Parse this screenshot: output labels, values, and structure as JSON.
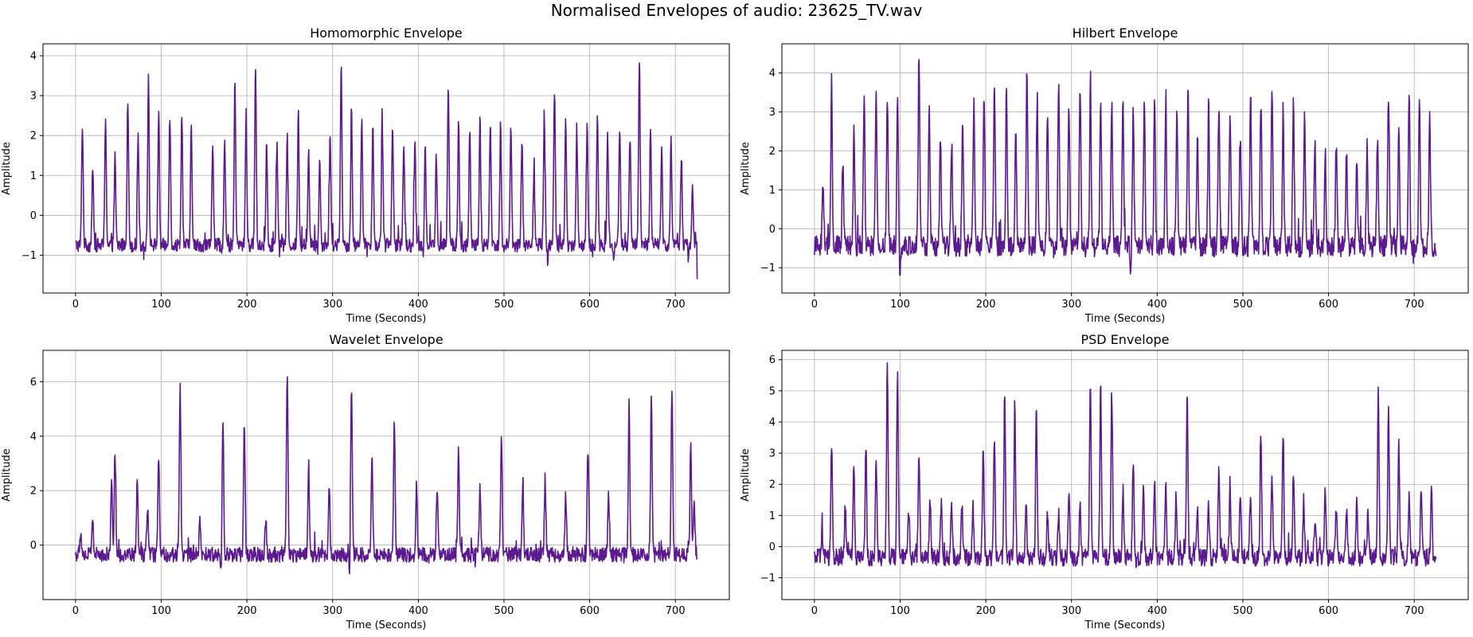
{
  "figure": {
    "suptitle": "Normalised Envelopes of audio: 23625_TV.wav",
    "line_color": "#5b1a8e"
  },
  "chart_data": [
    {
      "type": "line",
      "title": "Homomorphic Envelope",
      "xlabel": "Time (Seconds)",
      "ylabel": "Amplitude",
      "xlim": [
        -38,
        763
      ],
      "ylim": [
        -1.95,
        4.3
      ],
      "xticks": [
        0,
        100,
        200,
        300,
        400,
        500,
        600,
        700
      ],
      "yticks": [
        -1,
        0,
        1,
        2,
        3,
        4
      ],
      "grid": true,
      "baseline": -0.75,
      "x_end": 725,
      "end_value": -1.6,
      "beats": [
        [
          8,
          2.3
        ],
        [
          20,
          1.2
        ],
        [
          35,
          2.45
        ],
        [
          46,
          1.45
        ],
        [
          61,
          2.85
        ],
        [
          73,
          2.05
        ],
        [
          85,
          3.4
        ],
        [
          97,
          2.6
        ],
        [
          110,
          2.55
        ],
        [
          124,
          2.55
        ],
        [
          135,
          2.15
        ],
        [
          160,
          1.85
        ],
        [
          174,
          1.85
        ],
        [
          186,
          3.35
        ],
        [
          199,
          2.55
        ],
        [
          210,
          3.7
        ],
        [
          223,
          1.85
        ],
        [
          235,
          1.75
        ],
        [
          247,
          1.95
        ],
        [
          260,
          2.55
        ],
        [
          272,
          1.65
        ],
        [
          285,
          1.45
        ],
        [
          297,
          2.0
        ],
        [
          310,
          3.7
        ],
        [
          322,
          2.7
        ],
        [
          334,
          2.45
        ],
        [
          347,
          2.15
        ],
        [
          358,
          2.15
        ],
        [
          370,
          2.35
        ],
        [
          383,
          1.85
        ],
        [
          396,
          1.9
        ],
        [
          408,
          1.85
        ],
        [
          421,
          1.45
        ],
        [
          435,
          3.25
        ],
        [
          447,
          2.3
        ],
        [
          460,
          2.15
        ],
        [
          472,
          2.35
        ],
        [
          484,
          2.35
        ],
        [
          496,
          2.25
        ],
        [
          508,
          2.15
        ],
        [
          521,
          1.95
        ],
        [
          535,
          1.05
        ],
        [
          547,
          2.5
        ],
        [
          559,
          3.2
        ],
        [
          572,
          2.3
        ],
        [
          585,
          2.3
        ],
        [
          597,
          2.2
        ],
        [
          609,
          2.5
        ],
        [
          621,
          2.05
        ],
        [
          635,
          2.15
        ],
        [
          647,
          2.05
        ],
        [
          658,
          3.95
        ],
        [
          671,
          2.1
        ],
        [
          684,
          1.6
        ],
        [
          695,
          1.95
        ],
        [
          707,
          1.5
        ],
        [
          720,
          0.75
        ]
      ],
      "dips": [
        [
          406,
          -1.2
        ],
        [
          551,
          -1.1
        ],
        [
          628,
          -1.15
        ],
        [
          715,
          -1.05
        ]
      ]
    },
    {
      "type": "line",
      "title": "Hilbert Envelope",
      "xlabel": "Time (Seconds)",
      "ylabel": "Amplitude",
      "xlim": [
        -38,
        763
      ],
      "ylim": [
        -1.65,
        4.75
      ],
      "xticks": [
        0,
        100,
        200,
        300,
        400,
        500,
        600,
        700
      ],
      "yticks": [
        -1,
        0,
        1,
        2,
        3,
        4
      ],
      "grid": true,
      "baseline": -0.45,
      "x_end": 725,
      "end_value": -0.7,
      "beats": [
        [
          10,
          1.3
        ],
        [
          20,
          3.5
        ],
        [
          33,
          1.8
        ],
        [
          46,
          2.8
        ],
        [
          58,
          3.3
        ],
        [
          72,
          3.45
        ],
        [
          85,
          3.3
        ],
        [
          97,
          3.6
        ],
        [
          122,
          4.45
        ],
        [
          134,
          2.95
        ],
        [
          147,
          2.45
        ],
        [
          160,
          2.25
        ],
        [
          173,
          2.85
        ],
        [
          186,
          3.25
        ],
        [
          198,
          3.5
        ],
        [
          210,
          3.85
        ],
        [
          224,
          3.95
        ],
        [
          235,
          2.65
        ],
        [
          248,
          4.05
        ],
        [
          260,
          3.3
        ],
        [
          272,
          3.05
        ],
        [
          285,
          3.65
        ],
        [
          297,
          3.2
        ],
        [
          310,
          3.8
        ],
        [
          322,
          4.0
        ],
        [
          334,
          3.15
        ],
        [
          347,
          3.2
        ],
        [
          360,
          3.3
        ],
        [
          372,
          3.2
        ],
        [
          385,
          3.5
        ],
        [
          397,
          3.25
        ],
        [
          410,
          3.3
        ],
        [
          423,
          3.05
        ],
        [
          436,
          3.6
        ],
        [
          447,
          3.0
        ],
        [
          460,
          3.25
        ],
        [
          472,
          3.1
        ],
        [
          485,
          3.05
        ],
        [
          497,
          2.95
        ],
        [
          509,
          3.55
        ],
        [
          521,
          3.3
        ],
        [
          534,
          3.55
        ],
        [
          547,
          3.05
        ],
        [
          559,
          3.4
        ],
        [
          572,
          2.75
        ],
        [
          584,
          2.3
        ],
        [
          596,
          2.1
        ],
        [
          609,
          2.2
        ],
        [
          621,
          2.05
        ],
        [
          633,
          1.95
        ],
        [
          645,
          2.1
        ],
        [
          657,
          2.35
        ],
        [
          670,
          4.05
        ],
        [
          682,
          2.85
        ],
        [
          694,
          3.55
        ],
        [
          706,
          3.25
        ],
        [
          718,
          3.15
        ]
      ],
      "dips": [
        [
          45,
          -1.05
        ],
        [
          100,
          -1.3
        ],
        [
          223,
          -1.3
        ],
        [
          321,
          -1.3
        ],
        [
          369,
          -1.3
        ],
        [
          447,
          -1.25
        ],
        [
          497,
          -1.2
        ],
        [
          595,
          -1.05
        ],
        [
          670,
          -1.2
        ]
      ]
    },
    {
      "type": "line",
      "title": "Wavelet Envelope",
      "xlabel": "Time (Seconds)",
      "ylabel": "Amplitude",
      "xlim": [
        -38,
        763
      ],
      "ylim": [
        -2.0,
        7.15
      ],
      "xticks": [
        0,
        100,
        200,
        300,
        400,
        500,
        600,
        700
      ],
      "yticks": [
        0,
        2,
        4,
        6
      ],
      "grid": true,
      "baseline": -0.35,
      "x_end": 725,
      "end_value": -0.5,
      "beats": [
        [
          6,
          0.5
        ],
        [
          20,
          1.0
        ],
        [
          42,
          2.25
        ],
        [
          46,
          3.45
        ],
        [
          72,
          2.3
        ],
        [
          84,
          1.5
        ],
        [
          97,
          3.3
        ],
        [
          122,
          5.75
        ],
        [
          145,
          0.8
        ],
        [
          172,
          4.8
        ],
        [
          197,
          4.5
        ],
        [
          222,
          1.0
        ],
        [
          247,
          6.8
        ],
        [
          272,
          3.0
        ],
        [
          296,
          2.2
        ],
        [
          322,
          5.8
        ],
        [
          346,
          3.2
        ],
        [
          372,
          4.7
        ],
        [
          398,
          2.2
        ],
        [
          422,
          2.2
        ],
        [
          447,
          3.45
        ],
        [
          472,
          2.2
        ],
        [
          497,
          4.1
        ],
        [
          522,
          2.0
        ],
        [
          548,
          2.5
        ],
        [
          572,
          1.8
        ],
        [
          598,
          4.3
        ],
        [
          622,
          2.0
        ],
        [
          646,
          5.3
        ],
        [
          672,
          5.5
        ],
        [
          696,
          5.7
        ],
        [
          718,
          3.6
        ],
        [
          722,
          1.7
        ]
      ],
      "dips": [
        [
          170,
          -1.45
        ],
        [
          320,
          -1.5
        ],
        [
          247,
          -1.0
        ],
        [
          598,
          -1.1
        ]
      ]
    },
    {
      "type": "line",
      "title": "PSD Envelope",
      "xlabel": "Time (Seconds)",
      "ylabel": "Amplitude",
      "xlim": [
        -38,
        763
      ],
      "ylim": [
        -1.7,
        6.3
      ],
      "xticks": [
        0,
        100,
        200,
        300,
        400,
        500,
        600,
        700
      ],
      "yticks": [
        -1,
        0,
        1,
        2,
        3,
        4,
        5,
        6
      ],
      "grid": true,
      "baseline": -0.35,
      "x_end": 725,
      "end_value": -0.4,
      "beats": [
        [
          9,
          0.45
        ],
        [
          20,
          3.4
        ],
        [
          36,
          1.4
        ],
        [
          46,
          2.55
        ],
        [
          60,
          3.15
        ],
        [
          72,
          2.9
        ],
        [
          85,
          5.9
        ],
        [
          97,
          5.45
        ],
        [
          110,
          1.65
        ],
        [
          122,
          3.7
        ],
        [
          135,
          1.5
        ],
        [
          148,
          1.35
        ],
        [
          160,
          1.55
        ],
        [
          172,
          1.45
        ],
        [
          185,
          1.25
        ],
        [
          197,
          3.25
        ],
        [
          210,
          3.55
        ],
        [
          222,
          4.85
        ],
        [
          234,
          4.8
        ],
        [
          247,
          1.35
        ],
        [
          259,
          4.45
        ],
        [
          272,
          1.2
        ],
        [
          285,
          1.2
        ],
        [
          297,
          1.75
        ],
        [
          310,
          1.35
        ],
        [
          322,
          5.45
        ],
        [
          334,
          5.2
        ],
        [
          347,
          5.05
        ],
        [
          360,
          1.55
        ],
        [
          372,
          2.7
        ],
        [
          384,
          2.0
        ],
        [
          397,
          2.05
        ],
        [
          410,
          2.05
        ],
        [
          422,
          1.55
        ],
        [
          435,
          5.15
        ],
        [
          447,
          1.2
        ],
        [
          460,
          1.35
        ],
        [
          472,
          2.65
        ],
        [
          485,
          1.8
        ],
        [
          497,
          1.75
        ],
        [
          509,
          1.5
        ],
        [
          521,
          3.7
        ],
        [
          534,
          2.2
        ],
        [
          547,
          3.65
        ],
        [
          559,
          2.45
        ],
        [
          571,
          1.45
        ],
        [
          584,
          1.3
        ],
        [
          596,
          1.65
        ],
        [
          609,
          1.25
        ],
        [
          621,
          1.2
        ],
        [
          633,
          1.6
        ],
        [
          646,
          1.05
        ],
        [
          658,
          4.95
        ],
        [
          670,
          4.5
        ],
        [
          682,
          3.4
        ],
        [
          694,
          1.75
        ],
        [
          708,
          1.9
        ],
        [
          720,
          1.85
        ]
      ],
      "dips": [
        [
          122,
          -1.25
        ],
        [
          110,
          -1.05
        ],
        [
          235,
          -1.25
        ],
        [
          584,
          -1.2
        ]
      ]
    }
  ]
}
